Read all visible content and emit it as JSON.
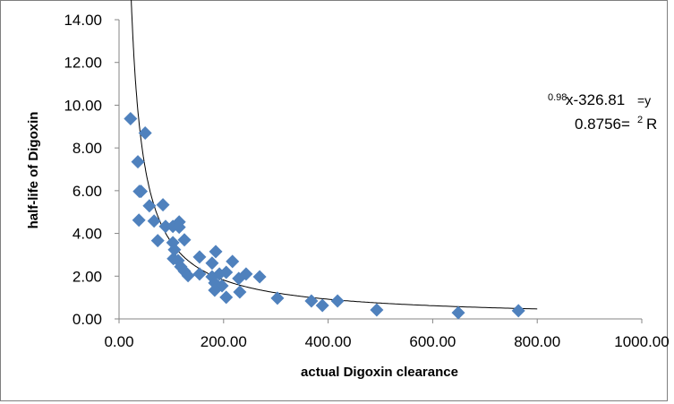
{
  "chart_data": {
    "type": "scatter",
    "title": "",
    "xlabel": "actual Digoxin clearance",
    "ylabel": "half-life of Digoxin",
    "xlim": [
      0,
      1000
    ],
    "ylim": [
      0,
      14
    ],
    "xticks": [
      "0.00",
      "200.00",
      "400.00",
      "600.00",
      "800.00",
      "1000.00"
    ],
    "yticks": [
      "0.00",
      "2.00",
      "4.00",
      "6.00",
      "8.00",
      "10.00",
      "12.00",
      "14.00"
    ],
    "grid": false,
    "legend": "none",
    "marker_color": "#4F81BD",
    "marker": "diamond",
    "points": [
      [
        22,
        9.37
      ],
      [
        50,
        8.7
      ],
      [
        36,
        7.35
      ],
      [
        39,
        5.97
      ],
      [
        42,
        5.97
      ],
      [
        58,
        5.29
      ],
      [
        84,
        5.34
      ],
      [
        38,
        4.62
      ],
      [
        67,
        4.58
      ],
      [
        89,
        4.33
      ],
      [
        103,
        4.33
      ],
      [
        115,
        4.54
      ],
      [
        115,
        4.29
      ],
      [
        74,
        3.66
      ],
      [
        125,
        3.7
      ],
      [
        103,
        3.57
      ],
      [
        106,
        3.24
      ],
      [
        104,
        2.82
      ],
      [
        113,
        2.73
      ],
      [
        118,
        2.44
      ],
      [
        125,
        2.23
      ],
      [
        132,
        2.02
      ],
      [
        154,
        2.9
      ],
      [
        185,
        3.15
      ],
      [
        178,
        2.61
      ],
      [
        217,
        2.69
      ],
      [
        154,
        2.1
      ],
      [
        178,
        1.97
      ],
      [
        192,
        2.1
      ],
      [
        205,
        2.18
      ],
      [
        183,
        1.68
      ],
      [
        197,
        1.55
      ],
      [
        183,
        1.34
      ],
      [
        205,
        1.01
      ],
      [
        229,
        1.89
      ],
      [
        243,
        2.1
      ],
      [
        269,
        1.97
      ],
      [
        231,
        1.26
      ],
      [
        303,
        0.97
      ],
      [
        368,
        0.84
      ],
      [
        389,
        0.63
      ],
      [
        418,
        0.84
      ],
      [
        493,
        0.42
      ],
      [
        649,
        0.29
      ],
      [
        764,
        0.38
      ]
    ],
    "trendline": {
      "type": "power",
      "coefficient": 326.81,
      "exponent": -0.98,
      "x_range": [
        22,
        800
      ],
      "color": "#000000"
    },
    "annotations": {
      "equation_exponent": "0.98",
      "equation_main": "x-326.81",
      "equation_tail": "=y",
      "r2_value": "0.8756=",
      "r2_sup": "2",
      "r2_label": "R"
    }
  }
}
